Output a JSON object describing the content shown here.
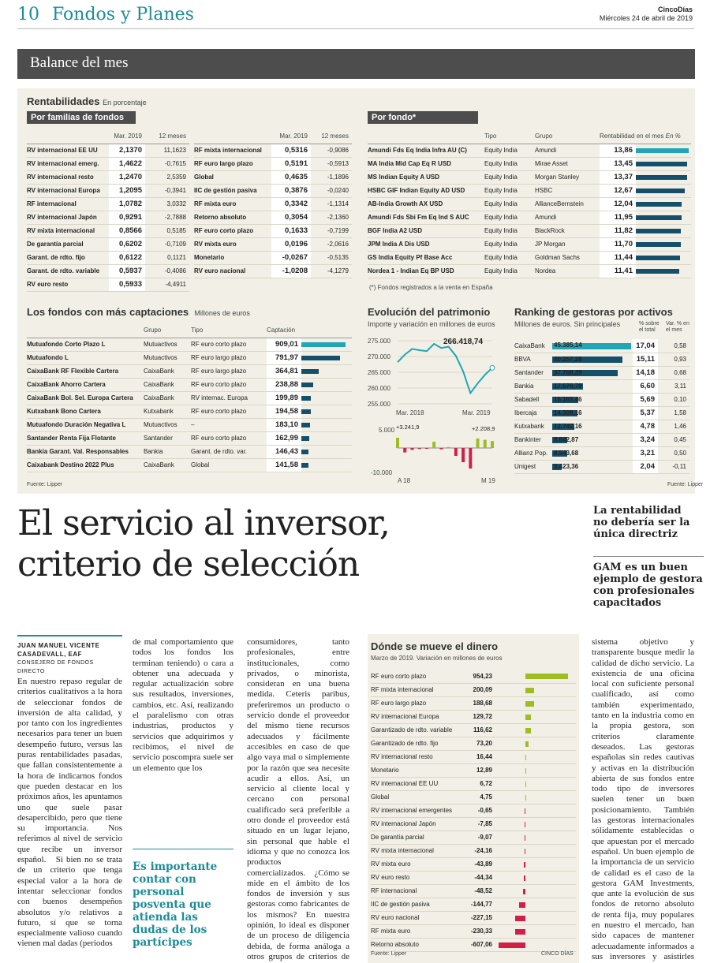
{
  "header": {
    "page": "10",
    "section": "Fondos y Planes",
    "brand": "CincoDías",
    "date": "Miércoles 24 de abril de 2019"
  },
  "banner": "Balance del mes",
  "rent": {
    "title": "Rentabilidades",
    "unit": "En porcentaje",
    "families_label": "Por familias de fondos",
    "fund_label": "Por fondo*",
    "col_mar": "Mar. 2019",
    "col_12": "12 meses",
    "left": [
      [
        "RV internacional EE UU",
        "2,1370",
        "11,1623"
      ],
      [
        "RV internacional emerg.",
        "1,4622",
        "-0,7615"
      ],
      [
        "RV internacional resto",
        "1,2470",
        "2,5359"
      ],
      [
        "RV internacional Europa",
        "1,2095",
        "-0,3941"
      ],
      [
        "RF internacional",
        "1,0782",
        "3,0332"
      ],
      [
        "RV internacional Japón",
        "0,9291",
        "-2,7888"
      ],
      [
        "RV mixta internacional",
        "0,8566",
        "0,5185"
      ],
      [
        "De garantía parcial",
        "0,6202",
        "-0,7109"
      ],
      [
        "Garant. de rdto. fijo",
        "0,6122",
        "0,1121"
      ],
      [
        "Garant. de rdto. variable",
        "0,5937",
        "-0,4086"
      ],
      [
        "RV euro resto",
        "0,5933",
        "-4,4911"
      ]
    ],
    "mid": [
      [
        "RF mixta internacional",
        "0,5316",
        "-0,9086"
      ],
      [
        "RF euro largo plazo",
        "0,5191",
        "-0,5913"
      ],
      [
        "Global",
        "0,4635",
        "-1,1896"
      ],
      [
        "IIC de gestión pasiva",
        "0,3876",
        "-0,0240"
      ],
      [
        "RF mixta euro",
        "0,3342",
        "-1,1314"
      ],
      [
        "Retorno absoluto",
        "0,3054",
        "-2,1360"
      ],
      [
        "RF euro corto plazo",
        "0,1633",
        "-0,7199"
      ],
      [
        "RV mixta euro",
        "0,0196",
        "-2,0616"
      ],
      [
        "Monetario",
        "-0,0267",
        "-0,5135"
      ],
      [
        "RV euro nacional",
        "-1,0208",
        "-4,1279"
      ]
    ],
    "fund_cols": [
      "Tipo",
      "Grupo",
      "Rentabilidad en el mes",
      "En %"
    ],
    "funds": [
      [
        "Amundi Fds Eq India Infra AU (C)",
        "Equity India",
        "Amundi",
        "13,86",
        13.86
      ],
      [
        "MA India Mid Cap Eq R USD",
        "Equity India",
        "Mirae Asset",
        "13,45",
        13.45
      ],
      [
        "MS Indian Equity A USD",
        "Equity India",
        "Morgan Stanley",
        "13,37",
        13.37
      ],
      [
        "HSBC GIF Indian Equity AD USD",
        "Equity India",
        "HSBC",
        "12,67",
        12.67
      ],
      [
        "AB-India Growth AX USD",
        "Equity India",
        "AllianceBernstein",
        "12,04",
        12.04
      ],
      [
        "Amundi Fds Sbi Fm Eq Ind S AUC",
        "Equity India",
        "Amundi",
        "11,95",
        11.95
      ],
      [
        "BGF India A2 USD",
        "Equity India",
        "BlackRock",
        "11,82",
        11.82
      ],
      [
        "JPM India A Dis USD",
        "Equity India",
        "JP Morgan",
        "11,70",
        11.7
      ],
      [
        "GS India Equity Pf Base Acc",
        "Equity India",
        "Goldman Sachs",
        "11,44",
        11.44
      ],
      [
        "Nordea 1 - Indian Eq BP USD",
        "Equity India",
        "Nordea",
        "11,41",
        11.41
      ]
    ],
    "footnote": "(*) Fondos registrados a la venta en España"
  },
  "capt": {
    "title": "Los fondos con más captaciones",
    "unit": "Millones de euros",
    "cols": [
      "Grupo",
      "Tipo",
      "Captación"
    ],
    "rows": [
      [
        "Mutuafondo Corto Plazo L",
        "Mutuactivos",
        "RF euro corto plazo",
        "909,01",
        909.01
      ],
      [
        "Mutuafondo L",
        "Mutuactivos",
        "RF euro largo plazo",
        "791,97",
        791.97
      ],
      [
        "CaixaBank RF Flexible Cartera",
        "CaixaBank",
        "RF euro largo plazo",
        "364,81",
        364.81
      ],
      [
        "CaixaBank Ahorro Cartera",
        "CaixaBank",
        "RF euro corto plazo",
        "238,88",
        238.88
      ],
      [
        "CaixaBank Bol. Sel. Europa Cartera",
        "CaixaBank",
        "RV internac. Europa",
        "199,89",
        199.89
      ],
      [
        "Kutxabank Bono Cartera",
        "Kutxabank",
        "RF euro corto plazo",
        "194,58",
        194.58
      ],
      [
        "Mutuafondo Duración Negativa L",
        "Mutuactivos",
        "–",
        "183,10",
        183.1
      ],
      [
        "Santander Renta Fija Flotante",
        "Santander",
        "RF euro corto plazo",
        "162,99",
        162.99
      ],
      [
        "Bankia Garant. Val. Responsables",
        "Bankia",
        "Garant. de rdto. var.",
        "146,43",
        146.43
      ],
      [
        "Caixabank Destino 2022 Plus",
        "CaixaBank",
        "Global",
        "141,58",
        141.58
      ]
    ],
    "source": "Fuente: Lipper"
  },
  "evol": {
    "title": "Evolución del patrimonio",
    "unit": "Importe y variación en millones de euros",
    "ticks": [
      "275.000",
      "270.000",
      "265.000",
      "260.000",
      "255.000"
    ],
    "xlabels": [
      "Mar. 2018",
      "Mar. 2019"
    ],
    "last": "266.418,74",
    "vticks": [
      "5.000",
      "-10.000"
    ],
    "vfirst": "+3.241,9",
    "vlast": "+2.208,9",
    "vx": [
      "A 18",
      "M 19"
    ]
  },
  "chart_data": {
    "type": "line",
    "ylim": [
      255000,
      275000
    ],
    "xlabels": [
      "Mar. 2018",
      "Mar. 2019"
    ],
    "values": [
      268200,
      270600,
      272400,
      272000,
      271700,
      274000,
      272700,
      273100,
      270200,
      265300,
      258400,
      261500,
      264200,
      266418.74
    ],
    "variation": [
      3241.9,
      -1400,
      -600,
      -300,
      -200,
      2000,
      -400,
      300,
      -2500,
      -4500,
      -6500,
      3000,
      2600,
      2208.9
    ]
  },
  "rank": {
    "title": "Ranking de gestoras por activos",
    "unit": "Millones de euros. Sin principales",
    "col1": "% sobre el total",
    "col2": "Var. % en el mes",
    "rows": [
      [
        "CaixaBank",
        "45.385,14",
        "17,04",
        "0,58",
        45385
      ],
      [
        "BBVA",
        "40.257,28",
        "15,11",
        "0,93",
        40257
      ],
      [
        "Santander",
        "37.768,39",
        "14,18",
        "0,68",
        37768
      ],
      [
        "Bankia",
        "17.576,78",
        "6,60",
        "3,11",
        17577
      ],
      [
        "Sabadell",
        "15.165,46",
        "5,69",
        "0,10",
        15165
      ],
      [
        "Ibercaja",
        "14.308,16",
        "5,37",
        "1,58",
        14308
      ],
      [
        "Kutxabank",
        "12.742,16",
        "4,78",
        "1,46",
        12742
      ],
      [
        "Bankinter",
        "8.642,87",
        "3,24",
        "0,45",
        8643
      ],
      [
        "Allianz Pop.",
        "8.543,68",
        "3,21",
        "0,50",
        8544
      ],
      [
        "Unigest",
        "5.423,36",
        "2,04",
        "-0,11",
        5423
      ]
    ],
    "source": "Fuente: Lipper"
  },
  "article": {
    "headline1": "El servicio al inversor,",
    "headline2": "criterio de selección",
    "side1": "La rentabilidad no debería ser la única directriz",
    "side2": "GAM es un buen ejemplo de gestora con profesionales capacitados",
    "author": "JUAN MANUEL VICENTE CASADEVALL, EAF",
    "role": "CONSEJERO DE FONDOS DIRECTO",
    "col1": "En nuestro repaso regular de criterios cualitativos a la hora de seleccionar fondos de inversión de alta calidad, y por tanto con los ingredientes necesarios para tener un buen desempeño futuro, versus las puras rentabilidades pasadas, que fallan consistentemente a la hora de indicarnos fondos que pueden destacar en los próximos años, les apuntamos uno que suele pasar desapercibido, pero que tiene su importancia. Nos referimos al nivel de servicio que recibe un inversor español.   Si bien no se trata de un criterio que tenga especial valor a la hora de intentar seleccionar fondos con buenos desempeños absolutos y/o relativos a futuro, sí que se torna especialmente valioso cuando vienen mal dadas (periodos",
    "col2": "de mal comportamiento que todos los fondos los terminan teniendo) o cara a obtener una adecuada y regular actualización sobre sus resultados, inversiones, cambios, etc. Así, realizando el paralelismo con otras industrias, productos y servicios que adquirimos y recibimos, el nivel de servicio poscompra suele ser un elemento que los",
    "quote": "Es importante contar con personal posventa que atienda las dudas de los partícipes",
    "col3": "consumidores, tanto profesionales, entre institucionales, como privados, o minorista, consideran en una buena medida. Ceteris paribus, preferiremos un producto o servicio donde el proveedor del mismo tiene recursos adecuados y fácilmente accesibles en caso de que algo vaya mal o simplemente por la razón que sea necesite acudir a ellos. Así, un servicio al cliente local y cercano con personal cualificado será preferible a otro donde el proveedor está situado en un lugar lejano, sin personal que hable el idioma y que no conozca los productos comercializados.   ¿Cómo se mide en el ámbito de los fondos de inversión y sus gestoras como fabricantes de los mismos? En nuestra opinión, lo ideal es disponer de un proceso de diligencia debida, de forma análoga a otros grupos de criterios de selección, que mediante un",
    "col4": "sistema objetivo y transparente busque medir la calidad de dicho servicio. La existencia de una oficina local con suficiente personal cualificado, así como también experimentado, tanto en la industria como en la propia gestora, son criterios claramente deseados. Las gestoras españolas sin redes cautivas y activas en la distribución abierta de sus fondos entre todo tipo de inversores suelen tener un buen posicionamiento. También las gestoras internacionales sólidamente establecidas o que apuestan por el mercado español. Un buen ejemplo de la importancia de un servicio de calidad es el caso de la gestora GAM Investments, que ante la evolución de sus fondos de retorno absoluto de renta fija, muy populares en nuestro el mercado, han sido capaces de mantener adecuadamente informados a sus inversores y asistirles con todas su dudas."
  },
  "dinero": {
    "title": "Dónde se mueve el dinero",
    "unit": "Marzo de 2019. Variación en millones de euros",
    "rows": [
      [
        "RF euro corto plazo",
        "954,23",
        954.23
      ],
      [
        "RF mixta internacional",
        "200,09",
        200.09
      ],
      [
        "RF euro largo plazo",
        "188,68",
        188.68
      ],
      [
        "RV internacional Europa",
        "129,72",
        129.72
      ],
      [
        "Garantizado de rdto. variable",
        "116,62",
        116.62
      ],
      [
        "Garantizado de rdto. fijo",
        "73,20",
        73.2
      ],
      [
        "RV internacional resto",
        "16,44",
        16.44
      ],
      [
        "Monetario",
        "12,89",
        12.89
      ],
      [
        "RV internacional EE UU",
        "6,72",
        6.72
      ],
      [
        "Global",
        "4,75",
        4.75
      ],
      [
        "RV internacional emergentes",
        "-0,65",
        -0.65
      ],
      [
        "RV internacional Japón",
        "-7,85",
        -7.85
      ],
      [
        "De garantía parcial",
        "-9,07",
        -9.07
      ],
      [
        "RV mixta internacional",
        "-24,16",
        -24.16
      ],
      [
        "RV mixta euro",
        "-43,89",
        -43.89
      ],
      [
        "RV euro resto",
        "-44,34",
        -44.34
      ],
      [
        "RF internacional",
        "-48,52",
        -48.52
      ],
      [
        "IIC de gestión pasiva",
        "-144,77",
        -144.77
      ],
      [
        "RV euro nacional",
        "-227,15",
        -227.15
      ],
      [
        "RF mixta euro",
        "-230,33",
        -230.33
      ],
      [
        "Retorno absoluto",
        "-607,06",
        -607.06
      ]
    ],
    "source": "Fuente: Lipper",
    "credit": "CINCO DÍAS"
  }
}
